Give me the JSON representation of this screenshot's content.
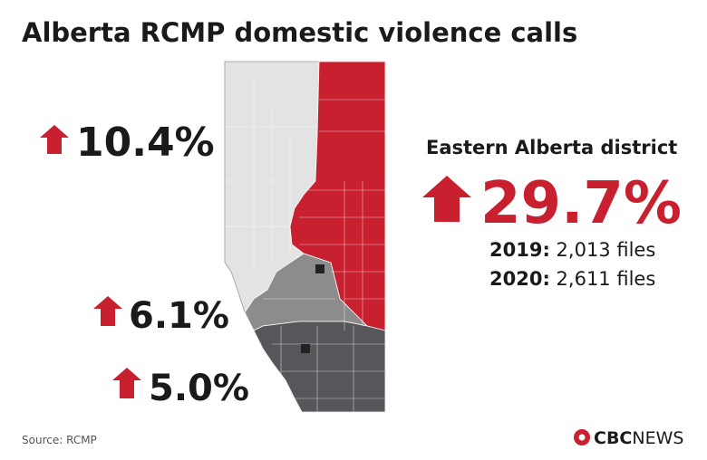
{
  "title": "Alberta RCMP domestic violence calls",
  "regions": [
    {
      "change": "10.4%"
    },
    {
      "change": "6.1%"
    },
    {
      "change": "5.0%"
    }
  ],
  "eastern_district": {
    "name": "Eastern Alberta district",
    "change": "29.7%",
    "years": [
      {
        "year": "2019:",
        "files": "2,013 files"
      },
      {
        "year": "2020:",
        "files": "2,611 files"
      }
    ]
  },
  "source": "Source: RCMP",
  "logo": {
    "brand": "CBC",
    "suffix": "NEWS"
  }
}
